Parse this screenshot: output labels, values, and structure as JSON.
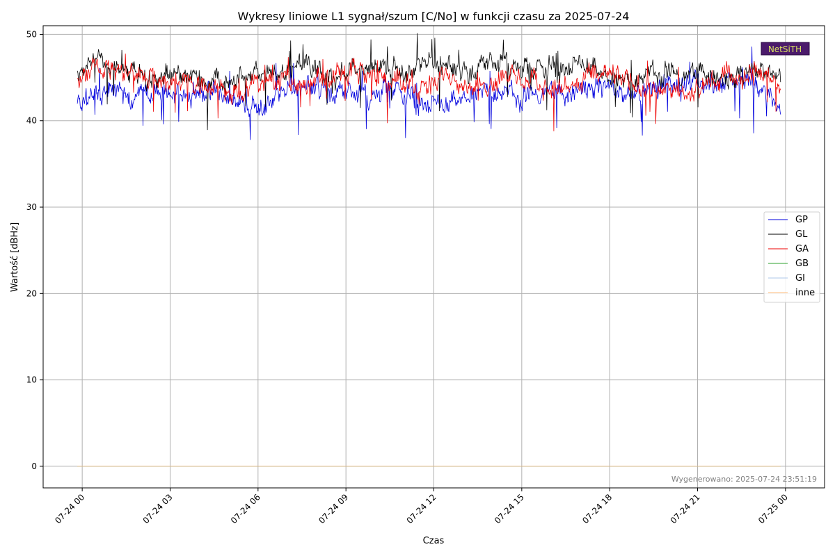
{
  "chart_data": {
    "type": "line",
    "title": "Wykresy liniowe L1 sygnał/szum [C/No] w funkcji czasu za 2025-07-24",
    "xlabel": "Czas",
    "ylabel": "Wartość [dBHz]",
    "x_range": [
      "2025-07-23 22:40",
      "2025-07-25 01:20"
    ],
    "ylim": [
      -2.5,
      51
    ],
    "x_ticks": [
      "07-24 00",
      "07-24 03",
      "07-24 06",
      "07-24 09",
      "07-24 12",
      "07-24 15",
      "07-24 18",
      "07-24 21",
      "07-25 00"
    ],
    "y_ticks": [
      0,
      10,
      20,
      30,
      40,
      50
    ],
    "grid": true,
    "legend_position": "right",
    "series": [
      {
        "name": "GP",
        "color": "#0000dd",
        "x": [
          "2025-07-23 23:50",
          "2025-07-24 00:30",
          "2025-07-24 01:10",
          "2025-07-24 01:50",
          "2025-07-24 02:30",
          "2025-07-24 03:10",
          "2025-07-24 03:50",
          "2025-07-24 04:30",
          "2025-07-24 05:10",
          "2025-07-24 05:50",
          "2025-07-24 06:30",
          "2025-07-24 07:10",
          "2025-07-24 07:50",
          "2025-07-24 08:30",
          "2025-07-24 09:10",
          "2025-07-24 09:50",
          "2025-07-24 10:30",
          "2025-07-24 11:10",
          "2025-07-24 11:50",
          "2025-07-24 12:30",
          "2025-07-24 13:10",
          "2025-07-24 13:50",
          "2025-07-24 14:30",
          "2025-07-24 15:10",
          "2025-07-24 15:50",
          "2025-07-24 16:30",
          "2025-07-24 17:10",
          "2025-07-24 17:50",
          "2025-07-24 18:30",
          "2025-07-24 19:10",
          "2025-07-24 19:50",
          "2025-07-24 20:30",
          "2025-07-24 21:10",
          "2025-07-24 21:50",
          "2025-07-24 22:30",
          "2025-07-24 23:10",
          "2025-07-24 23:50"
        ],
        "y": [
          42.0,
          42.8,
          43.5,
          42.6,
          43.2,
          42.4,
          43.8,
          43.0,
          42.2,
          41.6,
          42.5,
          43.6,
          43.9,
          43.2,
          43.4,
          42.6,
          43.8,
          42.5,
          41.3,
          41.6,
          42.8,
          43.5,
          43.2,
          42.9,
          43.6,
          42.8,
          43.4,
          43.7,
          42.9,
          43.5,
          43.9,
          44.2,
          44.6,
          44.3,
          44.8,
          43.6,
          41.8
        ]
      },
      {
        "name": "GL",
        "color": "#000000",
        "x": [
          "2025-07-23 23:50",
          "2025-07-24 00:30",
          "2025-07-24 01:10",
          "2025-07-24 01:50",
          "2025-07-24 02:30",
          "2025-07-24 03:10",
          "2025-07-24 03:50",
          "2025-07-24 04:30",
          "2025-07-24 05:10",
          "2025-07-24 05:50",
          "2025-07-24 06:30",
          "2025-07-24 07:10",
          "2025-07-24 07:50",
          "2025-07-24 08:30",
          "2025-07-24 09:10",
          "2025-07-24 09:50",
          "2025-07-24 10:30",
          "2025-07-24 11:10",
          "2025-07-24 11:50",
          "2025-07-24 12:30",
          "2025-07-24 13:10",
          "2025-07-24 13:50",
          "2025-07-24 14:30",
          "2025-07-24 15:10",
          "2025-07-24 15:50",
          "2025-07-24 16:30",
          "2025-07-24 17:10",
          "2025-07-24 17:50",
          "2025-07-24 18:30",
          "2025-07-24 19:10",
          "2025-07-24 19:50",
          "2025-07-24 20:30",
          "2025-07-24 21:10",
          "2025-07-24 21:50",
          "2025-07-24 22:30",
          "2025-07-24 23:10",
          "2025-07-24 23:50"
        ],
        "y": [
          45.0,
          46.6,
          45.6,
          45.3,
          45.0,
          45.4,
          44.8,
          44.6,
          44.2,
          45.2,
          45.8,
          46.2,
          45.9,
          45.3,
          45.6,
          46.0,
          46.3,
          45.8,
          46.7,
          46.2,
          45.5,
          46.8,
          46.5,
          45.8,
          46.0,
          45.6,
          46.2,
          45.1,
          44.5,
          45.2,
          45.8,
          45.4,
          45.6,
          44.2,
          45.0,
          45.8,
          45.2
        ]
      },
      {
        "name": "GA",
        "color": "#ee0000",
        "x": [
          "2025-07-23 23:50",
          "2025-07-24 00:30",
          "2025-07-24 01:10",
          "2025-07-24 01:50",
          "2025-07-24 02:30",
          "2025-07-24 03:10",
          "2025-07-24 03:50",
          "2025-07-24 04:30",
          "2025-07-24 05:10",
          "2025-07-24 05:50",
          "2025-07-24 06:30",
          "2025-07-24 07:10",
          "2025-07-24 07:50",
          "2025-07-24 08:30",
          "2025-07-24 09:10",
          "2025-07-24 09:50",
          "2025-07-24 10:30",
          "2025-07-24 11:10",
          "2025-07-24 11:50",
          "2025-07-24 12:30",
          "2025-07-24 13:10",
          "2025-07-24 13:50",
          "2025-07-24 14:30",
          "2025-07-24 15:10",
          "2025-07-24 15:50",
          "2025-07-24 16:30",
          "2025-07-24 17:10",
          "2025-07-24 17:50",
          "2025-07-24 18:30",
          "2025-07-24 19:10",
          "2025-07-24 19:50",
          "2025-07-24 20:30",
          "2025-07-24 21:10",
          "2025-07-24 21:50",
          "2025-07-24 22:30",
          "2025-07-24 23:10",
          "2025-07-24 23:50"
        ],
        "y": [
          44.5,
          46.2,
          45.8,
          45.0,
          44.8,
          44.6,
          44.2,
          43.8,
          43.5,
          44.2,
          44.8,
          44.5,
          44.9,
          45.0,
          45.3,
          45.6,
          44.8,
          44.2,
          44.0,
          45.5,
          44.1,
          44.5,
          45.2,
          44.6,
          43.8,
          44.0,
          44.6,
          45.2,
          44.8,
          44.2,
          43.4,
          43.0,
          44.2,
          45.0,
          45.4,
          45.8,
          44.5
        ]
      },
      {
        "name": "GB",
        "color": "#2ca02c",
        "x": [
          "2025-07-23 23:50",
          "2025-07-24 23:50"
        ],
        "y": [
          0,
          0
        ]
      },
      {
        "name": "GI",
        "color": "#aec7e8",
        "x": [
          "2025-07-23 23:50",
          "2025-07-24 23:50"
        ],
        "y": [
          0,
          0
        ]
      },
      {
        "name": "inne",
        "color": "#ffbb78",
        "x": [
          "2025-07-23 23:50",
          "2025-07-24 23:50"
        ],
        "y": [
          0,
          0
        ]
      }
    ],
    "footer_note": "Wygenerowano: 2025-07-24 23:51:19",
    "logo_text": "NetSiTH"
  }
}
